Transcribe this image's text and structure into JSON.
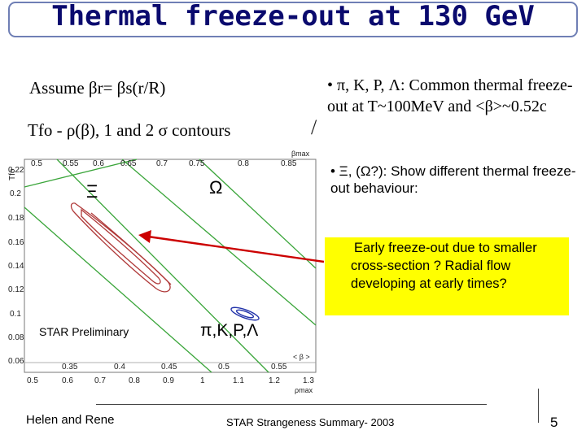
{
  "slide": {
    "title": "Thermal freeze-out at 130 GeV",
    "assume_text": "Assume βr= βs(r/R)",
    "contours_text": "Tfo - ρ(β), 1 and 2 σ contours",
    "bullet1": "• π, K, P, Λ: Common thermal freeze-out at T~100MeV and <β>~0.52c",
    "bullet2": "• Ξ, (Ω?): Show different thermal freeze-out behaviour:",
    "callout": "Early freeze-out due to smaller cross-section ? Radial flow developing at early times?",
    "footer_left": "Helen and Rene",
    "footer_center": "STAR Strangeness Summary- 2003",
    "page_number": "5",
    "colors": {
      "title": "#0a0a6e",
      "callout_bg": "#ffff00",
      "arrow": "#cc0000"
    }
  },
  "plot": {
    "top_axis_label": "βmax",
    "top_ticks": [
      "0.5",
      "0.55",
      "0.6",
      "0.65",
      "0.7",
      "0.75",
      "0.8",
      "0.85"
    ],
    "bottom_axis_label": "ρmax",
    "bottom_ticks": [
      "0.5",
      "0.6",
      "0.7",
      "0.8",
      "0.9",
      "1",
      "1.1",
      "1.2",
      "1.3"
    ],
    "inner_label": "< β >",
    "inner_ticks": [
      "0.35",
      "0.4",
      "0.45",
      "0.5",
      "0.55"
    ],
    "y_axis_label": "Tfo",
    "y_ticks": [
      "0.22",
      "0.2",
      "0.18",
      "0.16",
      "0.14",
      "0.12",
      "0.1",
      "0.08",
      "0.06"
    ],
    "label_xi": "Ξ",
    "label_omega": "Ω",
    "label_common": "π,K,P,Λ",
    "label_prelim": "STAR Preliminary"
  }
}
